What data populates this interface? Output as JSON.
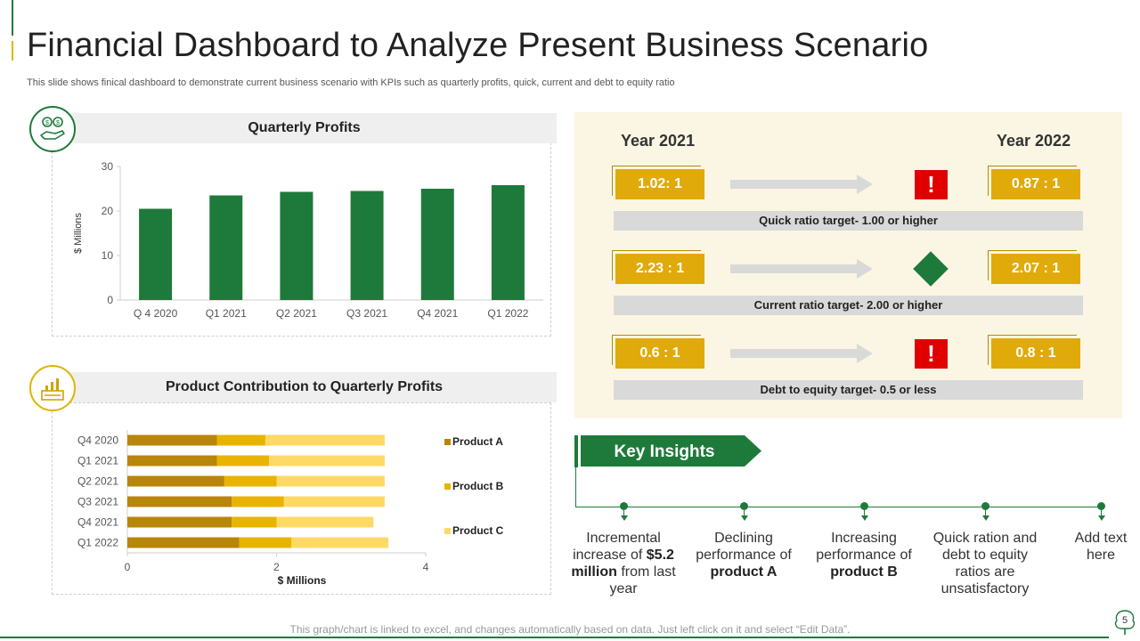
{
  "title": "Financial Dashboard to Analyze Present Business Scenario",
  "subtitle": "This slide shows finical dashboard to demonstrate current business scenario with KPIs such as quarterly profits, quick, current and debt to equity ratio",
  "colors": {
    "green": "#1e7a3a",
    "gold": "#e0aa0a",
    "productA": "#b8860b",
    "productB": "#e8b400",
    "productC": "#ffd966",
    "warn": "#e00000"
  },
  "chart_data": [
    {
      "type": "bar",
      "title": "Quarterly Profits",
      "ylabel": "$ Millions",
      "xlabel": "",
      "categories": [
        "Q 4 2020",
        "Q1 2021",
        "Q2 2021",
        "Q3 2021",
        "Q4 2021",
        "Q1 2022"
      ],
      "values": [
        20.5,
        23.5,
        24.3,
        24.5,
        25,
        25.8
      ],
      "ylim": [
        0,
        30
      ],
      "yticks": [
        0,
        10,
        20,
        30
      ]
    },
    {
      "type": "bar",
      "orientation": "horizontal",
      "stacked": true,
      "title": "Product Contribution to Quarterly Profits",
      "xlabel": "$ Millions",
      "categories": [
        "Q4 2020",
        "Q1 2021",
        "Q2 2021",
        "Q3 2021",
        "Q4 2021",
        "Q1 2022"
      ],
      "series": [
        {
          "name": "Product A",
          "values": [
            1.2,
            1.2,
            1.3,
            1.4,
            1.4,
            1.5
          ]
        },
        {
          "name": "Product B",
          "values": [
            0.65,
            0.7,
            0.7,
            0.7,
            0.6,
            0.7
          ]
        },
        {
          "name": "Product C",
          "values": [
            1.6,
            1.55,
            1.45,
            1.35,
            1.3,
            1.3
          ]
        }
      ],
      "xlim": [
        0,
        4
      ],
      "xticks": [
        0,
        2,
        4
      ]
    }
  ],
  "ratios": {
    "year_left": "Year 2021",
    "year_right": "Year 2022",
    "rows": [
      {
        "left": "1.02: 1",
        "right": "0.87 : 1",
        "status": "warning",
        "status_symbol": "!",
        "target": "Quick ratio target- 1.00 or higher"
      },
      {
        "left": "2.23 : 1",
        "right": "2.07 : 1",
        "status": "ok",
        "status_symbol": "",
        "target": "Current ratio target- 2.00 or higher"
      },
      {
        "left": "0.6 : 1",
        "right": "0.8 : 1",
        "status": "warning",
        "status_symbol": "!",
        "target": "Debt to equity target- 0.5 or less"
      }
    ]
  },
  "insights": {
    "heading": "Key Insights",
    "items": [
      {
        "pre": "Incremental increase of",
        "bold": "$5.2 million",
        "post": "from last year"
      },
      {
        "pre": "Declining performance of",
        "bold": "product A",
        "post": ""
      },
      {
        "pre": "Increasing performance of",
        "bold": "product B",
        "post": ""
      },
      {
        "pre": "Quick ration and debt to equity ratios are unsatisfactory",
        "bold": "",
        "post": ""
      },
      {
        "pre": "Add text here",
        "bold": "",
        "post": ""
      }
    ]
  },
  "footer": "This graph/chart is linked to excel, and changes automatically based on data. Just left click on it and select “Edit Data”.",
  "page_number": "5"
}
